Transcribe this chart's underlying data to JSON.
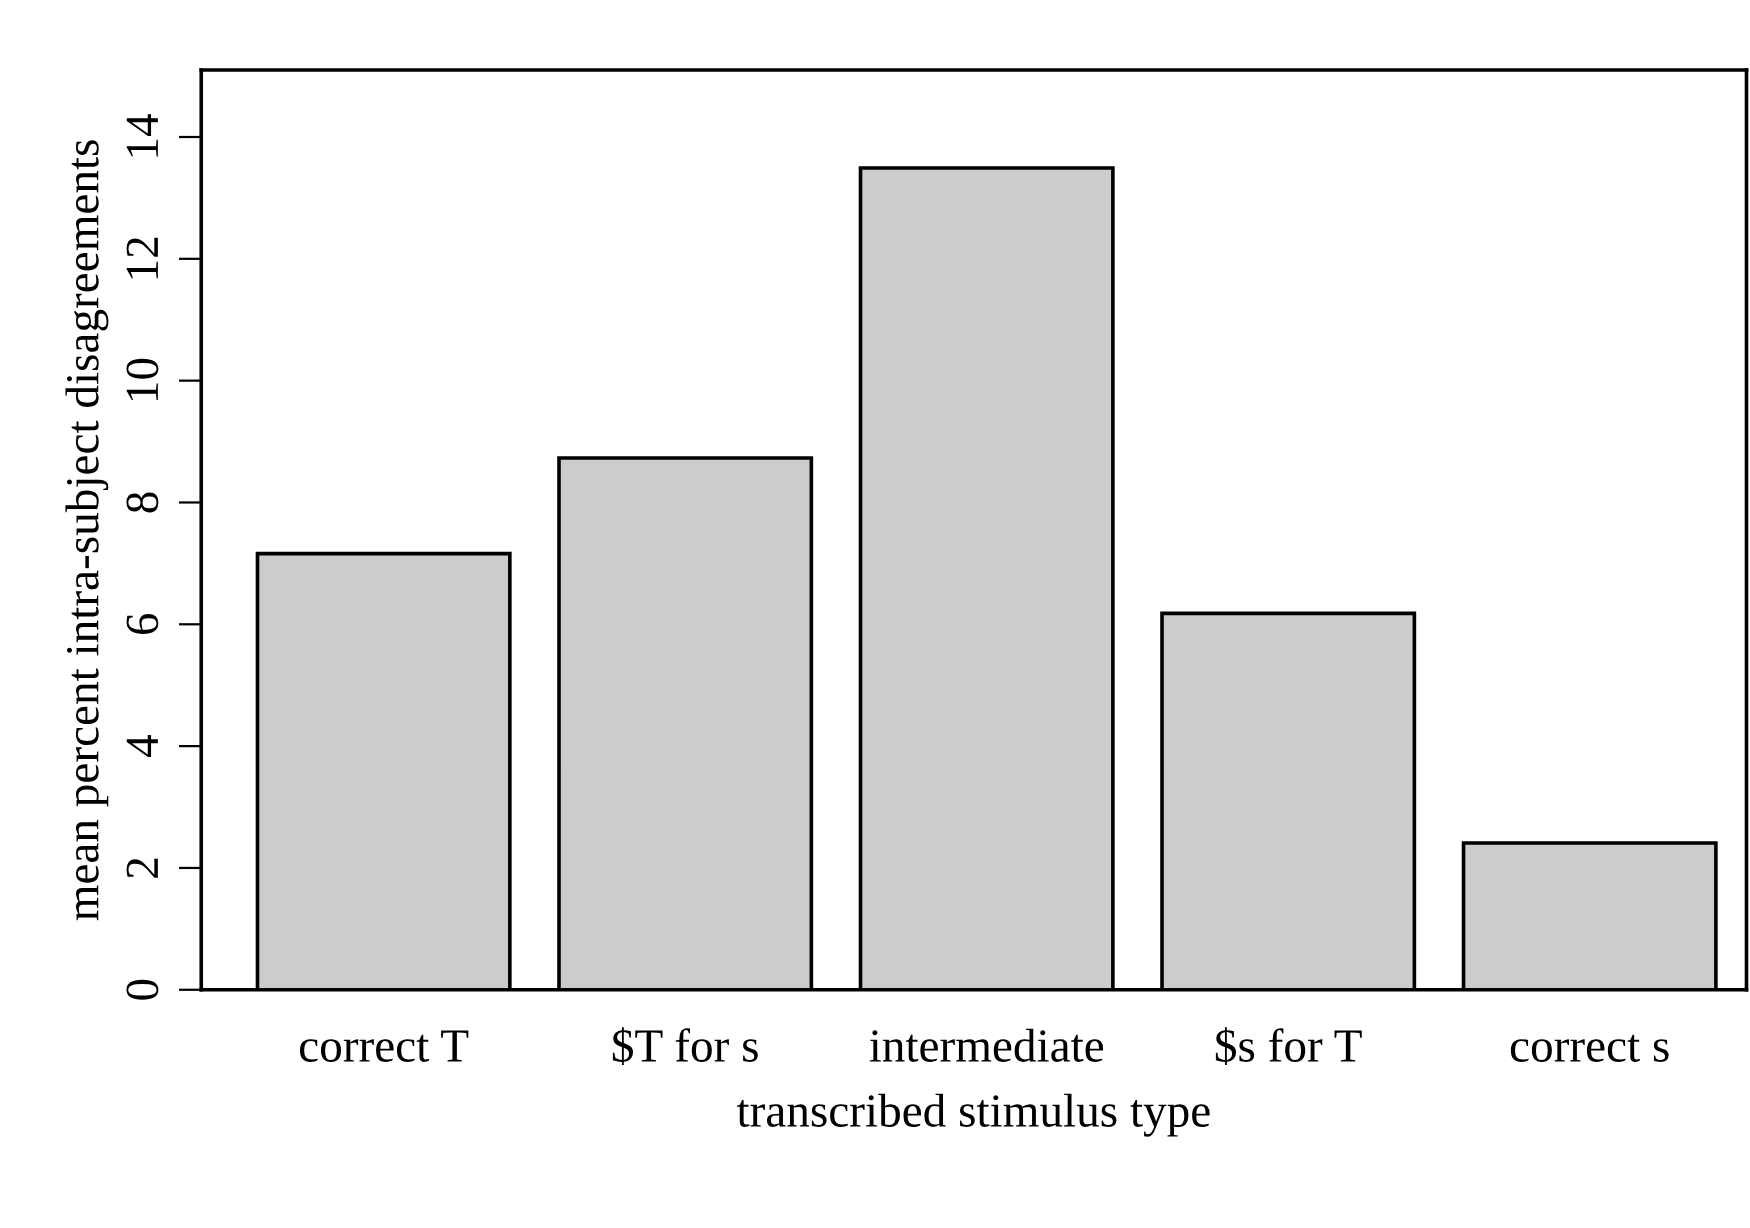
{
  "chart_data": {
    "type": "bar",
    "xlabel": "transcribed stimulus type",
    "ylabel": "mean percent intra-subject disagreements",
    "categories": [
      "correct T",
      "$T for s",
      "intermediate",
      "$s for T",
      "correct s"
    ],
    "values": [
      7.16,
      8.73,
      13.49,
      6.18,
      2.41
    ],
    "color": "#cccccc",
    "ylim": [
      0,
      15.1
    ],
    "yticks": [
      0,
      2,
      4,
      6,
      8,
      10,
      12,
      14
    ],
    "grid": false
  }
}
